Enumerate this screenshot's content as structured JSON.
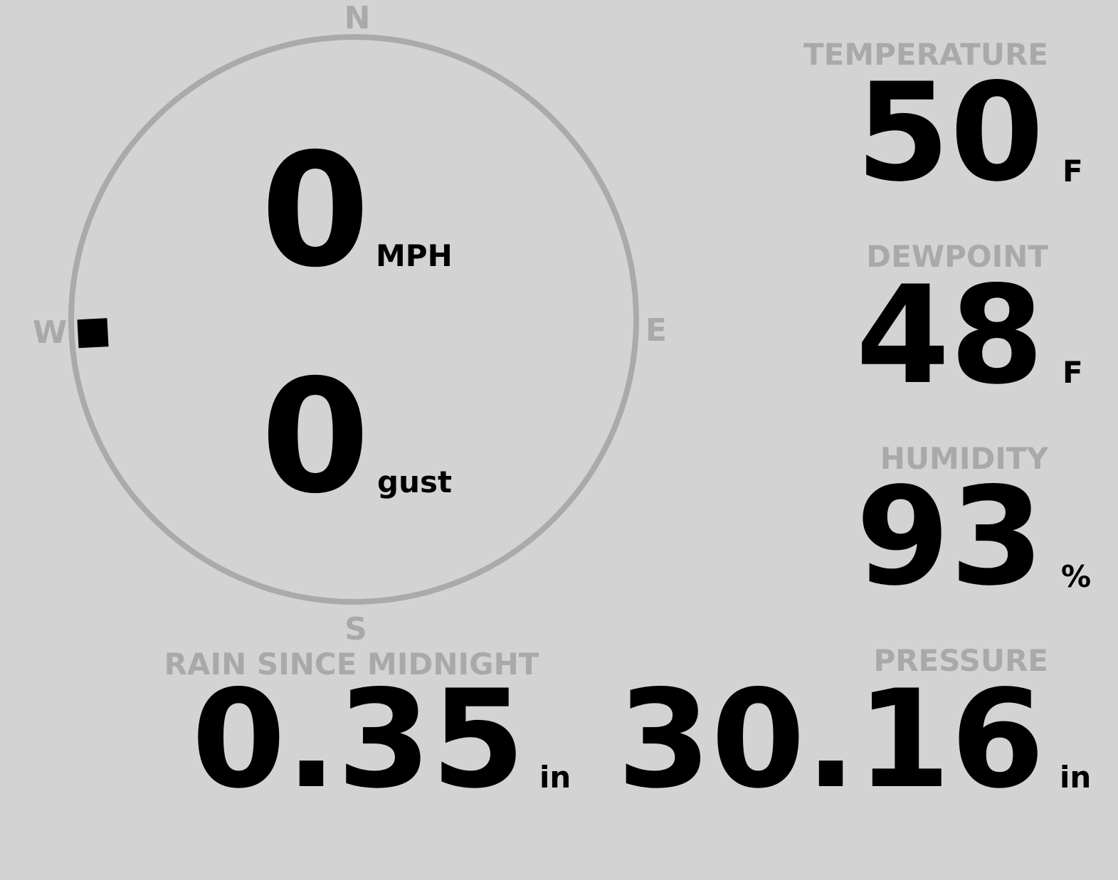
{
  "compass": {
    "north": "N",
    "east": "E",
    "south": "S",
    "west": "W",
    "wind_direction_deg": 267
  },
  "wind": {
    "speed": 0,
    "speed_unit": "MPH",
    "gust": 0,
    "gust_unit": "gust"
  },
  "temperature": {
    "label": "TEMPERATURE",
    "value": 50,
    "unit": "F"
  },
  "dewpoint": {
    "label": "DEWPOINT",
    "value": 48,
    "unit": "F"
  },
  "humidity": {
    "label": "HUMIDITY",
    "value": 93,
    "unit": "%"
  },
  "rain": {
    "label": "RAIN SINCE MIDNIGHT",
    "value": 0.35,
    "unit": "in"
  },
  "pressure": {
    "label": "PRESSURE",
    "value": 30.16,
    "unit": "in"
  }
}
